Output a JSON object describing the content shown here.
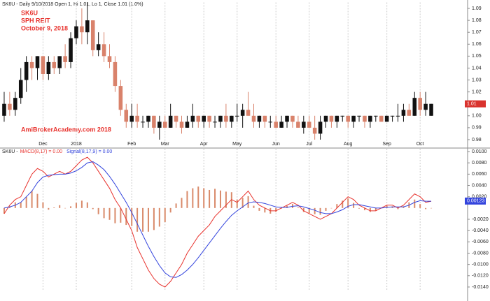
{
  "chart_data": [
    {
      "type": "candlestick",
      "title": "SK6U - Daily 9/10/2018 Open 1, Hi 1.01, Lo 1, Close 1.01 (1.0%)",
      "annotations": [
        "SK6U",
        "SPH REIT",
        "October 9, 2018",
        "AmiBrokerAcademy.com  2018"
      ],
      "categories": [
        null,
        null,
        null,
        null,
        null,
        null,
        null,
        "Dec",
        null,
        null,
        null,
        null,
        null,
        "2018",
        null,
        null,
        null,
        null,
        null,
        null,
        null,
        null,
        null,
        "Feb",
        null,
        null,
        null,
        null,
        null,
        "Mar",
        null,
        null,
        null,
        null,
        null,
        null,
        "Apr",
        null,
        null,
        null,
        null,
        null,
        "May",
        null,
        null,
        null,
        null,
        null,
        null,
        "Jun",
        null,
        null,
        null,
        null,
        null,
        "Jul",
        null,
        null,
        null,
        null,
        null,
        null,
        "Aug",
        null,
        null,
        null,
        null,
        null,
        null,
        "Sep",
        null,
        null,
        null,
        null,
        null,
        "Oct",
        null,
        null
      ],
      "open": [
        1.0,
        1.01,
        1.005,
        1.015,
        1.03,
        1.045,
        1.04,
        1.05,
        1.035,
        1.045,
        1.04,
        1.05,
        1.045,
        1.065,
        1.075,
        1.07,
        1.08,
        1.055,
        1.06,
        1.05,
        1.045,
        1.025,
        1.005,
        0.995,
        1.0,
        0.995,
        0.995,
        1.0,
        0.99,
        0.995,
        0.99,
        1.0,
        0.995,
        0.99,
        0.995,
        1.0,
        0.995,
        1.0,
        0.995,
        0.995,
        1.0,
        0.995,
        1.0,
        1.0,
        1.005,
        1.0,
        0.995,
        1.0,
        0.995,
        0.995,
        0.99,
        0.995,
        1.0,
        0.995,
        0.99,
        0.995,
        0.99,
        0.985,
        0.995,
        1.0,
        0.995,
        1.0,
        1.0,
        0.995,
        1.0,
        1.0,
        0.995,
        1.0,
        1.0,
        0.995,
        1.0,
        1.0,
        1.0,
        1.005,
        1.0,
        1.015,
        1.005,
        1.0
      ],
      "high": [
        1.02,
        1.02,
        1.02,
        1.04,
        1.05,
        1.05,
        1.05,
        1.05,
        1.05,
        1.05,
        1.05,
        1.06,
        1.07,
        1.08,
        1.09,
        1.095,
        1.08,
        1.07,
        1.07,
        1.06,
        1.05,
        1.03,
        1.01,
        1.01,
        1.01,
        1.0,
        1.0,
        1.0,
        1.0,
        1.0,
        1.01,
        1.0,
        1.0,
        1.0,
        1.01,
        1.0,
        1.0,
        1.0,
        1.0,
        1.0,
        1.01,
        1.0,
        1.01,
        1.01,
        1.02,
        1.01,
        1.0,
        1.0,
        1.0,
        1.0,
        1.0,
        1.0,
        1.0,
        1.0,
        1.0,
        1.0,
        1.0,
        1.0,
        1.0,
        1.0,
        1.0,
        1.0,
        1.0,
        1.0,
        1.0,
        1.0,
        1.0,
        1.0,
        1.0,
        1.0,
        1.0,
        1.01,
        1.01,
        1.01,
        1.02,
        1.02,
        1.02,
        1.01
      ],
      "low": [
        0.995,
        1.0,
        1.0,
        1.01,
        1.02,
        1.03,
        1.03,
        1.03,
        1.03,
        1.035,
        1.035,
        1.04,
        1.04,
        1.06,
        1.06,
        1.06,
        1.05,
        1.05,
        1.045,
        1.04,
        1.02,
        1.0,
        0.99,
        0.99,
        0.99,
        0.99,
        0.99,
        0.985,
        0.98,
        0.99,
        0.99,
        0.99,
        0.985,
        0.99,
        0.99,
        0.99,
        0.99,
        0.99,
        0.99,
        0.99,
        0.99,
        0.99,
        0.995,
        0.99,
        1.0,
        0.99,
        0.99,
        0.99,
        0.99,
        0.99,
        0.99,
        0.99,
        0.99,
        0.99,
        0.985,
        0.99,
        0.98,
        0.98,
        0.99,
        0.99,
        0.99,
        0.995,
        0.99,
        0.99,
        0.995,
        0.99,
        0.99,
        0.995,
        0.995,
        0.995,
        0.995,
        0.995,
        0.995,
        1.0,
        1.0,
        1.0,
        1.0,
        1.0
      ],
      "close": [
        1.01,
        1.005,
        1.015,
        1.03,
        1.045,
        1.04,
        1.05,
        1.035,
        1.045,
        1.04,
        1.05,
        1.045,
        1.065,
        1.075,
        1.07,
        1.08,
        1.055,
        1.06,
        1.05,
        1.045,
        1.025,
        1.005,
        0.995,
        1.0,
        0.995,
        0.995,
        1.0,
        0.99,
        0.995,
        0.99,
        1.0,
        0.995,
        0.99,
        0.995,
        1.0,
        0.995,
        1.0,
        0.995,
        0.995,
        1.0,
        0.995,
        1.0,
        1.0,
        1.005,
        1.0,
        0.995,
        1.0,
        0.995,
        0.995,
        0.99,
        0.995,
        1.0,
        0.995,
        0.99,
        0.995,
        0.99,
        0.985,
        0.995,
        1.0,
        0.995,
        1.0,
        1.0,
        0.995,
        1.0,
        1.0,
        0.995,
        1.0,
        1.0,
        0.995,
        1.0,
        1.0,
        1.0,
        1.005,
        1.0,
        1.015,
        1.005,
        1.01,
        1.01
      ],
      "up_color": "#111111",
      "down_color": "#d9826b",
      "ylim": [
        0.975,
        1.095
      ],
      "yticks": [
        0.98,
        0.99,
        {
          "value": 1,
          "label": "1.00"
        },
        1.01,
        1.02,
        1.03,
        1.04,
        1.05,
        1.06,
        1.07,
        1.08,
        1.09
      ],
      "last_value": 1.01,
      "last_color": "#d9332e",
      "grid": true
    },
    {
      "type": "macd",
      "title": "SK6U -",
      "series": [
        {
          "name": "MACD(8,17) = 0.00",
          "color": "#e8332e",
          "values": [
            -0.001,
            0.0005,
            0.0015,
            0.002,
            0.004,
            0.006,
            0.007,
            0.0065,
            0.0055,
            0.006,
            0.0065,
            0.006,
            0.0065,
            0.0075,
            0.0085,
            0.009,
            0.008,
            0.0065,
            0.005,
            0.0035,
            0.0015,
            0,
            -0.002,
            -0.004,
            -0.007,
            -0.009,
            -0.011,
            -0.0125,
            -0.0135,
            -0.014,
            -0.013,
            -0.0115,
            -0.01,
            -0.008,
            -0.0065,
            -0.005,
            -0.004,
            -0.003,
            -0.0015,
            -0.0005,
            0.0005,
            0.0015,
            0.001,
            0.002,
            0.003,
            0.0015,
            0.0005,
            0,
            -0.0005,
            -0.0005,
            0,
            0.0005,
            0.001,
            0.0005,
            -0.0005,
            -0.001,
            -0.0015,
            -0.002,
            -0.0015,
            -0.001,
            0,
            0.001,
            0.002,
            0.0015,
            0.0005,
            0,
            -0.0005,
            -0.0005,
            0,
            0.0005,
            0.0005,
            0,
            0.0005,
            0.0015,
            0.0025,
            0.002,
            0.001,
            0.0012
          ]
        },
        {
          "name": "Signal(8,17,9) = 0.00",
          "color": "#3344dd",
          "values": [
            0,
            0.0002,
            0.0005,
            0.001,
            0.002,
            0.003,
            0.0045,
            0.0055,
            0.0058,
            0.0059,
            0.006,
            0.006,
            0.0062,
            0.0066,
            0.0072,
            0.008,
            0.0082,
            0.0076,
            0.0068,
            0.0056,
            0.0042,
            0.0026,
            0.001,
            -0.0008,
            -0.0028,
            -0.0048,
            -0.0068,
            -0.0086,
            -0.0102,
            -0.0115,
            -0.0122,
            -0.0123,
            -0.0118,
            -0.011,
            -0.01,
            -0.0088,
            -0.0075,
            -0.0062,
            -0.0049,
            -0.0036,
            -0.0024,
            -0.0013,
            -0.0005,
            0.0002,
            0.0009,
            0.0011,
            0.001,
            0.0008,
            0.0005,
            0.0002,
            0.0001,
            0.0001,
            0.0003,
            0.0004,
            0.0002,
            -0.0001,
            -0.0004,
            -0.0008,
            -0.001,
            -0.001,
            -0.0007,
            -0.0003,
            0.0003,
            0.0006,
            0.0006,
            0.0004,
            0.0002,
            0,
            0,
            0.0001,
            0.0002,
            0.0002,
            0.0002,
            0.0005,
            0.001,
            0.0013,
            0.0012,
            0.0012
          ]
        }
      ],
      "histogram": {
        "color": "#d98a6a",
        "values": [
          -0.001,
          0.0003,
          0.001,
          0.001,
          0.002,
          0.003,
          0.0025,
          0.001,
          -0.0003,
          0.0001,
          0.0005,
          0,
          0.0003,
          0.0009,
          0.0013,
          0.001,
          -0.0002,
          -0.0011,
          -0.0018,
          -0.0021,
          -0.0027,
          -0.0026,
          -0.003,
          -0.0032,
          -0.0042,
          -0.0042,
          -0.0042,
          -0.0039,
          -0.0033,
          -0.0025,
          -0.0008,
          0.0008,
          0.0018,
          0.003,
          0.0035,
          0.0038,
          0.0035,
          0.0032,
          0.0034,
          0.0031,
          0.0029,
          0.0028,
          0.0015,
          0.0018,
          0.0021,
          0.0004,
          -0.0005,
          -0.0008,
          -0.001,
          -0.0007,
          -0.0001,
          0.0004,
          0.0007,
          0.0001,
          -0.0007,
          -0.0009,
          -0.0011,
          -0.0012,
          -0.0005,
          0,
          0.0007,
          0.0013,
          0.0017,
          0.0009,
          -0.0001,
          -0.0004,
          -0.0007,
          -0.0005,
          0,
          0.0004,
          0.0003,
          -0.0002,
          0.0003,
          0.001,
          0.0015,
          0.0007,
          -0.0002,
          0
        ]
      },
      "ylim": [
        -0.0145,
        0.0105
      ],
      "yticks": [
        {
          "value": 0.01,
          "label": "0.0100"
        },
        {
          "value": 0.008,
          "label": "0.0080"
        },
        {
          "value": 0.006,
          "label": "0.0060"
        },
        {
          "value": 0.004,
          "label": "0.0040"
        },
        {
          "value": 0.002,
          "label": "0.0020"
        },
        {
          "value": -0.002,
          "label": "-0.0020"
        },
        {
          "value": -0.004,
          "label": "-0.0040"
        },
        {
          "value": -0.006,
          "label": "-0.0060"
        },
        {
          "value": -0.008,
          "label": "-0.0080"
        },
        {
          "value": -0.01,
          "label": "-0.0100"
        },
        {
          "value": -0.012,
          "label": "-0.0120"
        },
        {
          "value": -0.014,
          "label": "-0.0140"
        }
      ],
      "last_value": 0.00123,
      "last_color": "#3344dd"
    }
  ]
}
